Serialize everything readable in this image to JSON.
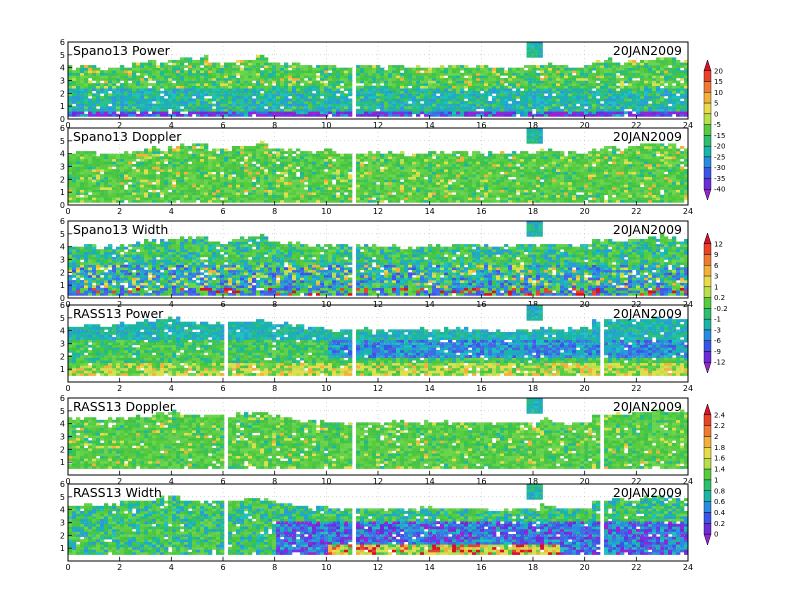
{
  "figure": {
    "date_label": "20JAN2009"
  },
  "chart_data": [
    {
      "type": "heatmap",
      "title": "Spano13 Power",
      "date": "20JAN2009",
      "x_ticks": [
        "0",
        "2",
        "4",
        "6",
        "8",
        "10",
        "12",
        "14",
        "16",
        "18",
        "20",
        "22",
        "24"
      ],
      "y_ticks": [
        "0",
        "1",
        "2",
        "3",
        "4",
        "5",
        "6"
      ],
      "xlim": [
        0,
        24
      ],
      "ylim": [
        0,
        6
      ],
      "colorbar": "power",
      "top_profile": [
        4.0,
        4.1,
        3.8,
        3.9,
        4.0,
        4.2,
        4.4,
        4.3,
        4.5,
        4.6,
        4.7,
        4.3,
        4.2,
        4.5,
        4.6,
        4.8,
        4.3,
        4.2,
        4.2,
        4.0,
        4.1,
        4.0,
        3.9,
        4.0,
        4.0,
        3.9,
        4.0,
        3.8,
        3.9,
        4.0,
        4.0,
        4.1,
        4.0,
        4.0,
        3.9,
        3.9,
        4.0,
        4.0,
        4.2,
        4.1,
        4.0,
        4.0,
        4.4,
        4.5,
        4.2,
        4.5,
        4.6,
        4.7,
        4.6,
        4.4
      ]
    },
    {
      "type": "heatmap",
      "title": "Spano13 Doppler",
      "date": "20JAN2009",
      "x_ticks": [
        "0",
        "2",
        "4",
        "6",
        "8",
        "10",
        "12",
        "14",
        "16",
        "18",
        "20",
        "22",
        "24"
      ],
      "y_ticks": [
        "0",
        "1",
        "2",
        "3",
        "4",
        "5",
        "6"
      ],
      "xlim": [
        0,
        24
      ],
      "ylim": [
        0,
        6
      ],
      "colorbar": "doppler",
      "top_profile": [
        4.0,
        4.1,
        3.8,
        3.9,
        4.0,
        4.2,
        4.4,
        4.3,
        4.5,
        4.6,
        4.7,
        4.3,
        4.2,
        4.5,
        4.6,
        4.8,
        4.3,
        4.2,
        4.2,
        4.0,
        4.1,
        4.0,
        3.9,
        4.0,
        4.0,
        3.9,
        4.0,
        3.8,
        3.9,
        4.0,
        4.0,
        4.1,
        4.0,
        4.0,
        3.9,
        3.9,
        4.0,
        4.0,
        4.2,
        4.1,
        4.0,
        4.0,
        4.4,
        4.5,
        4.2,
        4.5,
        4.6,
        4.7,
        4.6,
        4.4
      ]
    },
    {
      "type": "heatmap",
      "title": "Spano13 Width",
      "date": "20JAN2009",
      "x_ticks": [
        "0",
        "2",
        "4",
        "6",
        "8",
        "10",
        "12",
        "14",
        "16",
        "18",
        "20",
        "22",
        "24"
      ],
      "y_ticks": [
        "0",
        "1",
        "2",
        "3",
        "4",
        "5",
        "6"
      ],
      "xlim": [
        0,
        24
      ],
      "ylim": [
        0,
        6
      ],
      "colorbar": "width_db",
      "top_profile": [
        4.0,
        4.1,
        3.8,
        3.9,
        4.0,
        4.2,
        4.4,
        4.3,
        4.5,
        4.6,
        4.7,
        4.3,
        4.2,
        4.5,
        4.6,
        4.8,
        4.3,
        4.2,
        4.2,
        4.0,
        4.1,
        4.0,
        3.9,
        4.0,
        4.0,
        3.9,
        4.0,
        3.8,
        3.9,
        4.0,
        4.0,
        4.1,
        4.0,
        4.0,
        3.9,
        3.9,
        4.0,
        4.0,
        4.2,
        4.1,
        4.0,
        4.0,
        4.4,
        4.5,
        4.2,
        4.5,
        4.6,
        4.7,
        4.6,
        4.4
      ]
    },
    {
      "type": "heatmap",
      "title": "RASS13 Power",
      "date": "20JAN2009",
      "x_ticks": [
        "0",
        "2",
        "4",
        "6",
        "8",
        "10",
        "12",
        "14",
        "16",
        "18",
        "20",
        "22",
        "24"
      ],
      "y_ticks": [
        "1",
        "2",
        "3",
        "4",
        "5",
        "6"
      ],
      "xlim": [
        0,
        24
      ],
      "ylim": [
        0,
        6
      ],
      "colorbar": "width_db",
      "top_profile": [
        4.2,
        4.3,
        4.2,
        4.3,
        4.5,
        4.6,
        4.6,
        4.8,
        4.9,
        4.6,
        4.5,
        4.5,
        4.5,
        4.6,
        4.7,
        4.8,
        4.6,
        4.4,
        4.2,
        4.1,
        4.1,
        4.0,
        4.0,
        4.0,
        4.0,
        3.9,
        4.0,
        4.0,
        4.0,
        4.0,
        4.0,
        4.0,
        4.0,
        4.0,
        3.9,
        3.9,
        4.0,
        4.0,
        4.2,
        4.0,
        4.0,
        4.0,
        4.6,
        4.7,
        4.7,
        4.7,
        4.8,
        4.9,
        4.9,
        4.8
      ]
    },
    {
      "type": "heatmap",
      "title": "RASS13 Doppler",
      "date": "20JAN2009",
      "x_ticks": [
        "0",
        "2",
        "4",
        "6",
        "8",
        "10",
        "12",
        "14",
        "16",
        "18",
        "20",
        "22",
        "24"
      ],
      "y_ticks": [
        "1",
        "2",
        "3",
        "4",
        "5",
        "6"
      ],
      "xlim": [
        0,
        24
      ],
      "ylim": [
        0,
        6
      ],
      "colorbar": "doppler_ms",
      "top_profile": [
        4.2,
        4.3,
        4.2,
        4.3,
        4.5,
        4.6,
        4.6,
        4.8,
        4.9,
        4.6,
        4.5,
        4.5,
        4.5,
        4.6,
        4.7,
        4.8,
        4.6,
        4.4,
        4.2,
        4.1,
        4.1,
        4.0,
        4.0,
        4.0,
        4.0,
        3.9,
        4.0,
        4.0,
        4.0,
        4.0,
        4.0,
        4.0,
        4.0,
        4.0,
        3.9,
        3.9,
        4.0,
        4.0,
        4.2,
        4.0,
        4.0,
        4.0,
        4.6,
        4.7,
        4.7,
        4.7,
        4.8,
        4.9,
        4.9,
        4.8
      ]
    },
    {
      "type": "heatmap",
      "title": "RASS13 Width",
      "date": "20JAN2009",
      "x_ticks": [
        "0",
        "2",
        "4",
        "6",
        "8",
        "10",
        "12",
        "14",
        "16",
        "18",
        "20",
        "22",
        "24"
      ],
      "y_ticks": [
        "1",
        "2",
        "3",
        "4",
        "5",
        "6"
      ],
      "xlim": [
        0,
        24
      ],
      "ylim": [
        0,
        6
      ],
      "colorbar": "doppler_ms",
      "top_profile": [
        4.2,
        4.3,
        4.2,
        4.3,
        4.5,
        4.6,
        4.6,
        4.8,
        4.9,
        4.6,
        4.5,
        4.5,
        4.5,
        4.6,
        4.7,
        4.8,
        4.6,
        4.4,
        4.2,
        4.1,
        4.1,
        4.0,
        4.0,
        4.0,
        4.0,
        3.9,
        4.0,
        4.0,
        4.0,
        4.0,
        4.0,
        4.0,
        4.0,
        4.0,
        3.9,
        3.9,
        4.0,
        4.0,
        4.2,
        4.0,
        4.0,
        4.0,
        4.6,
        4.7,
        4.7,
        4.7,
        4.8,
        4.9,
        4.9,
        4.8
      ]
    }
  ],
  "colorbars": [
    {
      "id": "cb1",
      "labels": [
        "20",
        "15",
        "10",
        "5",
        "0",
        "-5",
        "-15",
        "-20",
        "-25",
        "-30",
        "-35",
        "-40"
      ],
      "colors": [
        "#d8102a",
        "#e8422a",
        "#f07a34",
        "#f3b13c",
        "#e8dc4c",
        "#b8e04c",
        "#56cc3e",
        "#2dbf6e",
        "#1ab4a8",
        "#2a8ce0",
        "#3a55e8",
        "#6a2ed8",
        "#9a22d4"
      ]
    },
    {
      "id": "cb2",
      "labels": [
        "12",
        "9",
        "6",
        "3",
        "1",
        "0.2",
        "-0.2",
        "-1",
        "-3",
        "-6",
        "-9",
        "-12"
      ],
      "colors": [
        "#d8102a",
        "#e8422a",
        "#f07a34",
        "#f3b13c",
        "#e8dc4c",
        "#b8e04c",
        "#56cc3e",
        "#2dbf6e",
        "#1ab4a8",
        "#2a8ce0",
        "#3a55e8",
        "#6a2ed8",
        "#9a22d4"
      ]
    },
    {
      "id": "cb3",
      "labels": [
        "2.4",
        "2.2",
        "2",
        "1.8",
        "1.6",
        "1.4",
        "1",
        "0.8",
        "0.6",
        "0.4",
        "0.2",
        "0"
      ],
      "colors": [
        "#d8102a",
        "#e8422a",
        "#f07a34",
        "#f3b13c",
        "#e8dc4c",
        "#b8e04c",
        "#56cc3e",
        "#2dbf6e",
        "#1ab4a8",
        "#2a8ce0",
        "#3a55e8",
        "#6a2ed8",
        "#9a22d4"
      ]
    }
  ]
}
